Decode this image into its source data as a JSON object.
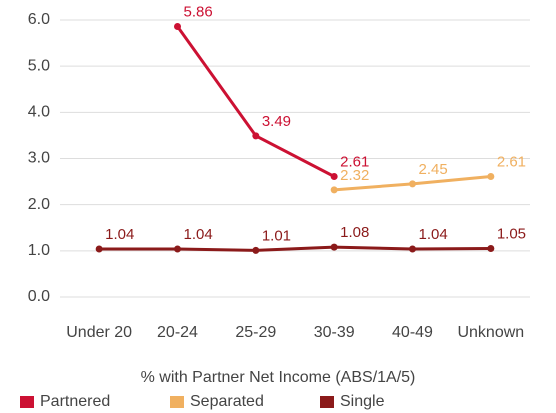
{
  "chart_data": {
    "type": "line",
    "x_label": "% with Partner Net Income (ABS/1A/5)",
    "categories": [
      "Under 20",
      "20-24",
      "25-29",
      "30-39",
      "40-49",
      "Unknown"
    ],
    "series": [
      {
        "name": "Partnered",
        "color": "#cc1133",
        "values": [
          null,
          5.86,
          3.49,
          2.61,
          null,
          null
        ]
      },
      {
        "name": "Separated",
        "color": "#f0b060",
        "values": [
          null,
          null,
          null,
          2.32,
          2.45,
          2.61
        ]
      },
      {
        "name": "Single",
        "color": "#8b1a1a",
        "values": [
          1.04,
          1.04,
          1.01,
          1.08,
          1.04,
          1.05
        ]
      }
    ],
    "ylim": [
      0,
      6
    ],
    "yticks": [
      {
        "value": 0,
        "label": "0.0"
      },
      {
        "value": 1,
        "label": "1.0"
      },
      {
        "value": 2,
        "label": "2.0"
      },
      {
        "value": 3,
        "label": "3.0"
      },
      {
        "value": 4,
        "label": "4.0"
      },
      {
        "value": 5,
        "label": "5.0"
      },
      {
        "value": 6,
        "label": "6.0"
      }
    ],
    "grid": true
  }
}
